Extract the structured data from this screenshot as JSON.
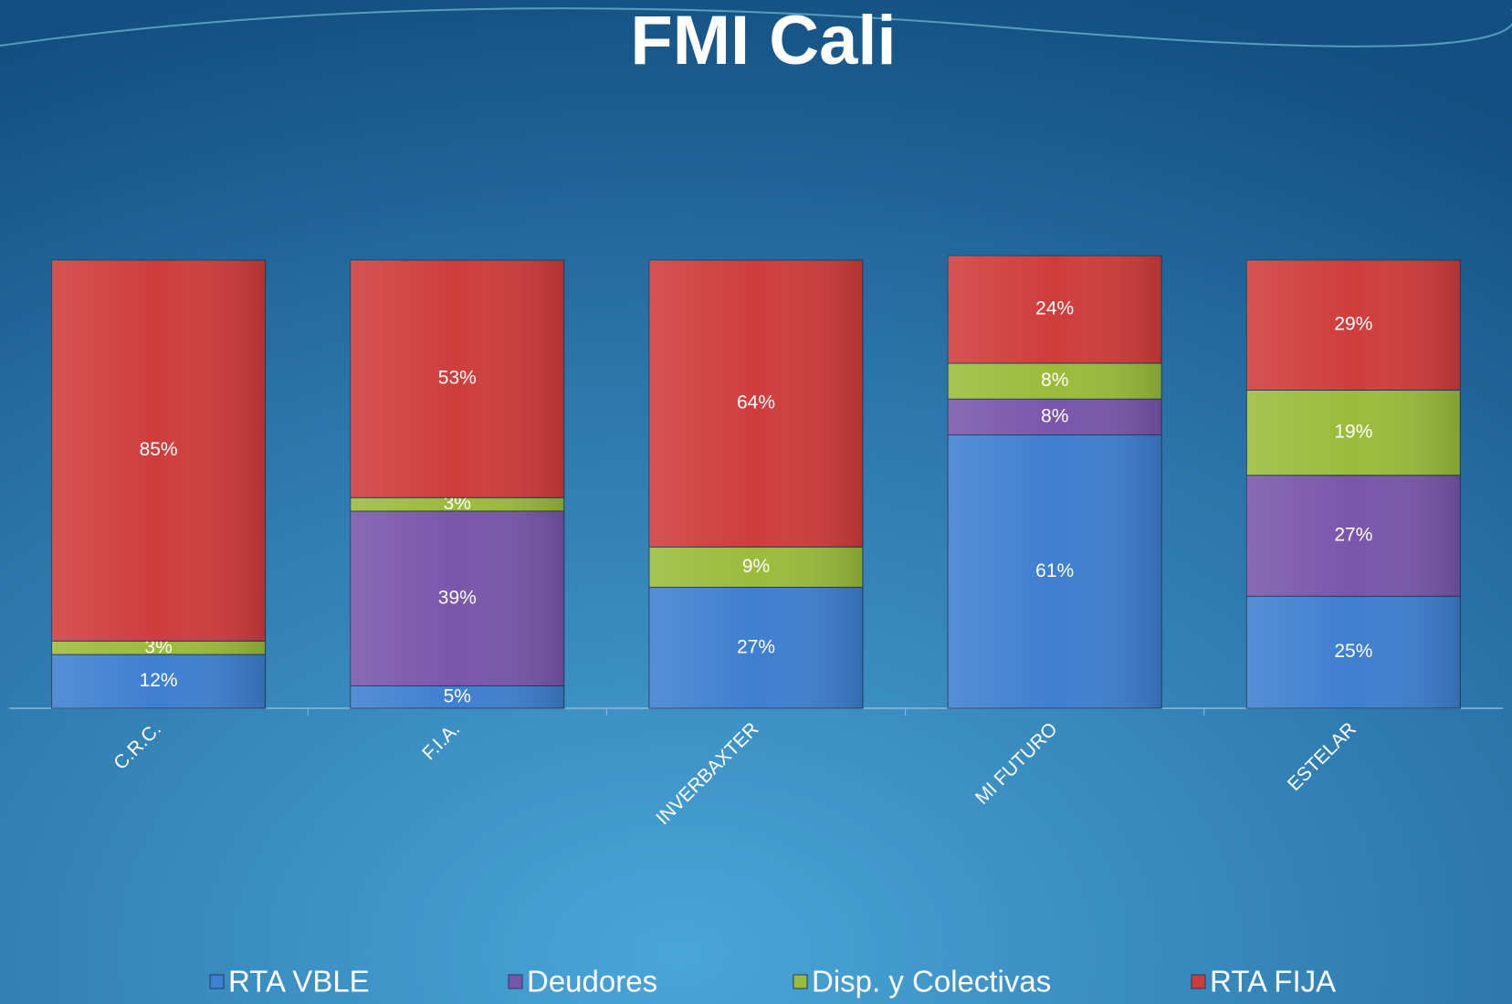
{
  "chart_data": {
    "type": "bar",
    "stacked": true,
    "title": "FMI Cali",
    "categories": [
      "C.R.C.",
      "F.I.A.",
      "INVERBAXTER",
      "MI FUTURO",
      "ESTELAR"
    ],
    "series": [
      {
        "name": "RTA VBLE",
        "color": "#3f7fd0",
        "values": [
          12,
          5,
          27,
          61,
          25
        ],
        "value_labels": [
          "12%",
          "5%",
          "27%",
          "61%",
          "25%"
        ]
      },
      {
        "name": "Deudores",
        "color": "#7a56aa",
        "values": [
          null,
          39,
          null,
          8,
          27
        ],
        "value_labels": [
          null,
          "39%",
          null,
          "8%",
          "27%"
        ]
      },
      {
        "name": "Disp. y Colectivas",
        "color": "#9bbb3b",
        "values": [
          3,
          3,
          9,
          8,
          19
        ],
        "value_labels": [
          "3%",
          "3%",
          "9%",
          "8%",
          "19%"
        ]
      },
      {
        "name": "RTA FIJA",
        "color": "#cf3d3b",
        "values": [
          85,
          53,
          64,
          24,
          29
        ],
        "value_labels": [
          "85%",
          "53%",
          "64%",
          "24%",
          "29%"
        ]
      }
    ],
    "ylim": [
      0,
      100
    ],
    "legend": "bottom"
  }
}
